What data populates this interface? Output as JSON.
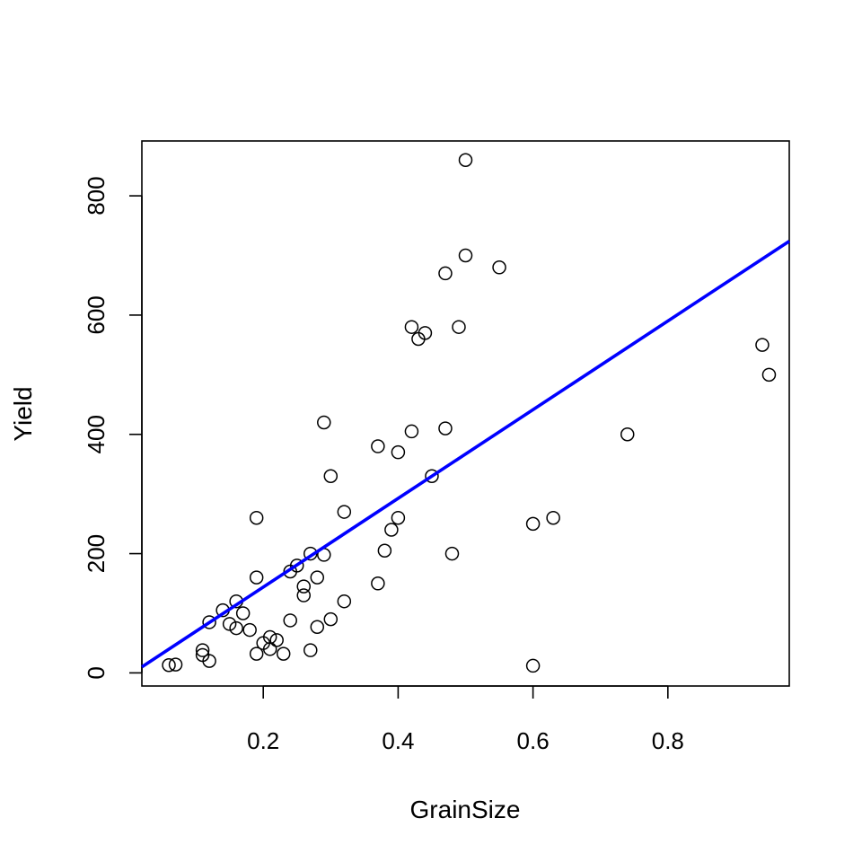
{
  "chart_data": {
    "type": "scatter",
    "title": "",
    "xlabel": "GrainSize",
    "ylabel": "Yield",
    "xlim": [
      0.02,
      0.98
    ],
    "ylim": [
      -22,
      892
    ],
    "x_ticks": [
      0.2,
      0.4,
      0.6,
      0.8
    ],
    "x_tick_labels": [
      "0.2",
      "0.4",
      "0.6",
      "0.8"
    ],
    "y_ticks": [
      0,
      200,
      400,
      600,
      800
    ],
    "y_tick_labels": [
      "0",
      "200",
      "400",
      "600",
      "800"
    ],
    "grid": false,
    "legend": "none",
    "colors": {
      "points": "#000000",
      "fit_line": "#0000ff",
      "axes": "#000000",
      "background": "#ffffff"
    },
    "series": [
      {
        "type": "scatter",
        "marker": "open-circle",
        "points": [
          {
            "x": 0.06,
            "y": 13
          },
          {
            "x": 0.07,
            "y": 14
          },
          {
            "x": 0.11,
            "y": 38
          },
          {
            "x": 0.11,
            "y": 30
          },
          {
            "x": 0.12,
            "y": 20
          },
          {
            "x": 0.12,
            "y": 85
          },
          {
            "x": 0.14,
            "y": 105
          },
          {
            "x": 0.15,
            "y": 82
          },
          {
            "x": 0.16,
            "y": 120
          },
          {
            "x": 0.16,
            "y": 75
          },
          {
            "x": 0.17,
            "y": 100
          },
          {
            "x": 0.18,
            "y": 72
          },
          {
            "x": 0.19,
            "y": 260
          },
          {
            "x": 0.19,
            "y": 160
          },
          {
            "x": 0.19,
            "y": 32
          },
          {
            "x": 0.2,
            "y": 50
          },
          {
            "x": 0.21,
            "y": 60
          },
          {
            "x": 0.21,
            "y": 40
          },
          {
            "x": 0.22,
            "y": 55
          },
          {
            "x": 0.23,
            "y": 32
          },
          {
            "x": 0.24,
            "y": 170
          },
          {
            "x": 0.24,
            "y": 88
          },
          {
            "x": 0.25,
            "y": 180
          },
          {
            "x": 0.26,
            "y": 145
          },
          {
            "x": 0.26,
            "y": 130
          },
          {
            "x": 0.27,
            "y": 200
          },
          {
            "x": 0.27,
            "y": 38
          },
          {
            "x": 0.28,
            "y": 160
          },
          {
            "x": 0.28,
            "y": 77
          },
          {
            "x": 0.29,
            "y": 420
          },
          {
            "x": 0.29,
            "y": 198
          },
          {
            "x": 0.3,
            "y": 330
          },
          {
            "x": 0.3,
            "y": 90
          },
          {
            "x": 0.32,
            "y": 270
          },
          {
            "x": 0.32,
            "y": 120
          },
          {
            "x": 0.37,
            "y": 380
          },
          {
            "x": 0.37,
            "y": 150
          },
          {
            "x": 0.38,
            "y": 205
          },
          {
            "x": 0.39,
            "y": 240
          },
          {
            "x": 0.4,
            "y": 370
          },
          {
            "x": 0.4,
            "y": 260
          },
          {
            "x": 0.42,
            "y": 580
          },
          {
            "x": 0.42,
            "y": 405
          },
          {
            "x": 0.43,
            "y": 560
          },
          {
            "x": 0.44,
            "y": 570
          },
          {
            "x": 0.45,
            "y": 330
          },
          {
            "x": 0.47,
            "y": 670
          },
          {
            "x": 0.47,
            "y": 410
          },
          {
            "x": 0.48,
            "y": 200
          },
          {
            "x": 0.49,
            "y": 580
          },
          {
            "x": 0.5,
            "y": 860
          },
          {
            "x": 0.5,
            "y": 700
          },
          {
            "x": 0.55,
            "y": 680
          },
          {
            "x": 0.6,
            "y": 250
          },
          {
            "x": 0.6,
            "y": 12
          },
          {
            "x": 0.63,
            "y": 260
          },
          {
            "x": 0.74,
            "y": 400
          },
          {
            "x": 0.94,
            "y": 550
          },
          {
            "x": 0.95,
            "y": 500
          }
        ]
      },
      {
        "type": "line",
        "style": "regression-fit",
        "points": [
          {
            "x": 0.02,
            "y": 10
          },
          {
            "x": 0.98,
            "y": 724
          }
        ]
      }
    ]
  }
}
